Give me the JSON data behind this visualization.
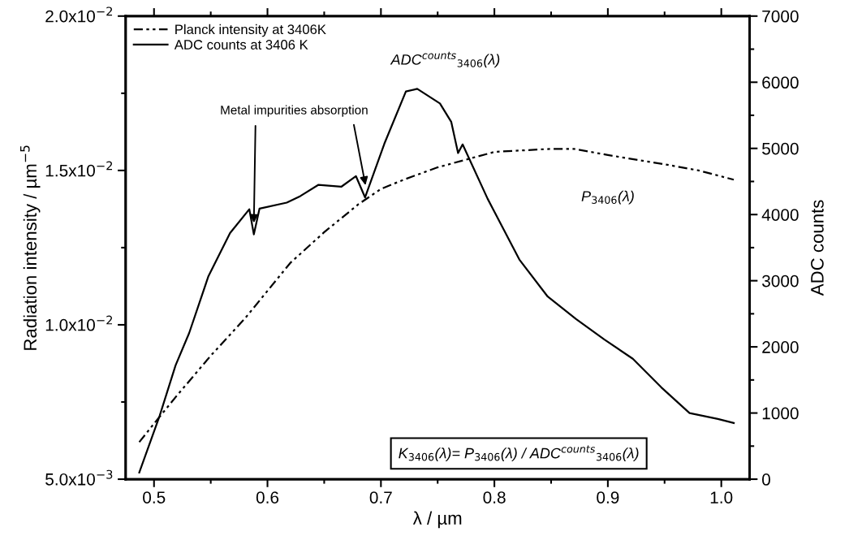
{
  "chart_data": {
    "type": "line",
    "xlabel": "λ / µm",
    "ylabel": "Radiation intensity / µm$^{−5}$",
    "y2label": "ADC counts",
    "xlim": [
      0.475,
      1.025
    ],
    "xticks": [
      {
        "value": 0.5,
        "label": "0.5"
      },
      {
        "value": 0.6,
        "label": "0.6"
      },
      {
        "value": 0.7,
        "label": "0.7"
      },
      {
        "value": 0.8,
        "label": "0.8"
      },
      {
        "value": 0.9,
        "label": "0.9"
      },
      {
        "value": 1.0,
        "label": "1.0"
      }
    ],
    "ylim": [
      0.005,
      0.02
    ],
    "yticks": [
      {
        "value": 0.005,
        "label": "5.0x10$^{−3}$"
      },
      {
        "value": 0.01,
        "label": "1.0x10$^{−2}$"
      },
      {
        "value": 0.015,
        "label": "1.5x10$^{−2}$"
      },
      {
        "value": 0.02,
        "label": "2.0x10$^{−2}$"
      }
    ],
    "y2lim": [
      0,
      7000
    ],
    "y2ticks": [
      0,
      1000,
      2000,
      3000,
      4000,
      5000,
      6000,
      7000
    ],
    "legend": "top left",
    "series": [
      {
        "name": "Planck intensity at 3406K",
        "color": "#000000",
        "line_style": "dashdotdot",
        "x": [
          0.487,
          0.5,
          0.52,
          0.55,
          0.58,
          0.6,
          0.62,
          0.65,
          0.68,
          0.7,
          0.72,
          0.75,
          0.78,
          0.8,
          0.85,
          0.87,
          0.9,
          0.95,
          0.98,
          1.011
        ],
        "values": [
          0.0062,
          0.0068,
          0.0077,
          0.009,
          0.0102,
          0.0111,
          0.012,
          0.013,
          0.0139,
          0.0144,
          0.0147,
          0.0151,
          0.0154,
          0.0156,
          0.0157,
          0.0157,
          0.0155,
          0.0152,
          0.015,
          0.0147
        ]
      },
      {
        "name": "ADC counts at 3406 K",
        "color": "#000000",
        "line_style": "solid",
        "axis": "y2",
        "x": [
          0.487,
          0.505,
          0.519,
          0.531,
          0.548,
          0.567,
          0.584,
          0.588,
          0.593,
          0.617,
          0.629,
          0.645,
          0.665,
          0.678,
          0.686,
          0.703,
          0.722,
          0.732,
          0.752,
          0.762,
          0.768,
          0.772,
          0.794,
          0.822,
          0.847,
          0.872,
          0.897,
          0.922,
          0.947,
          0.972,
          0.997,
          1.011
        ],
        "values": [
          100,
          960,
          1720,
          2210,
          3070,
          3720,
          4080,
          3700,
          4090,
          4180,
          4280,
          4450,
          4420,
          4580,
          4260,
          5070,
          5860,
          5900,
          5680,
          5400,
          4930,
          5060,
          4240,
          3320,
          2760,
          2420,
          2110,
          1820,
          1390,
          1000,
          910,
          850
        ]
      }
    ],
    "annotations": [
      {
        "text": "Metal impurities absorption",
        "x": 0.588,
        "y": 0.0133
      },
      "ADC$^{counts}$$_{3406}$(λ)",
      "P$_{3406}$(λ)",
      "K$_{3406}$(λ)= P$_{3406}$(λ) / ADC$^{counts}$$_{3406}$(λ)"
    ]
  }
}
